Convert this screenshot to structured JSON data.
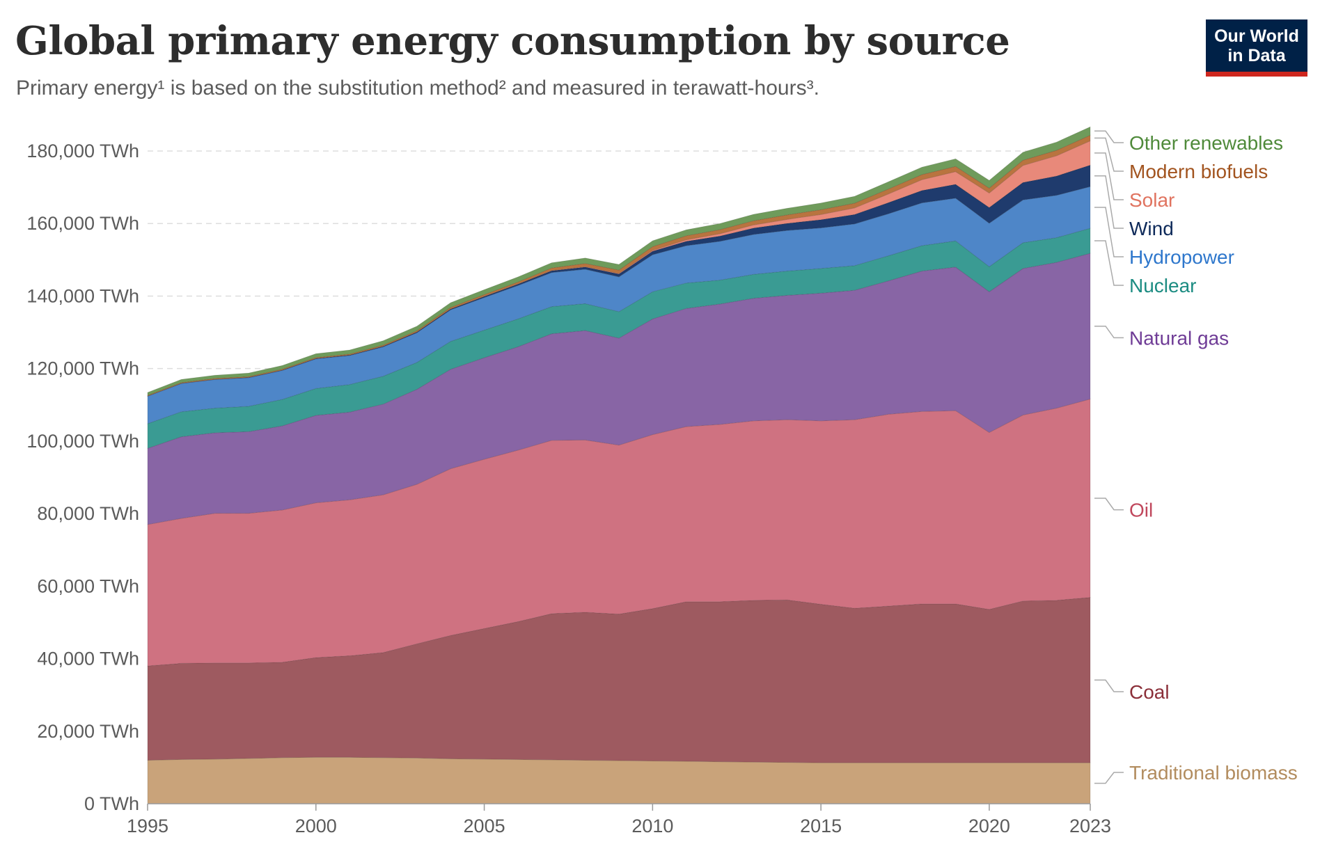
{
  "header": {
    "title": "Global primary energy consumption by source",
    "subtitle": "Primary energy¹ is based on the substitution method² and measured in terawatt-hours³."
  },
  "logo": {
    "line1": "Our World",
    "line2": "in Data"
  },
  "chart_data": {
    "type": "area",
    "stacked": true,
    "title": "Global primary energy consumption by source",
    "x": [
      1995,
      1996,
      1997,
      1998,
      1999,
      2000,
      2001,
      2002,
      2003,
      2004,
      2005,
      2006,
      2007,
      2008,
      2009,
      2010,
      2011,
      2012,
      2013,
      2014,
      2015,
      2016,
      2017,
      2018,
      2019,
      2020,
      2021,
      2022,
      2023
    ],
    "x_ticks": [
      1995,
      2000,
      2005,
      2010,
      2015,
      2020,
      2023
    ],
    "y_ticks": [
      {
        "value": 0,
        "label": "0 TWh"
      },
      {
        "value": 20000,
        "label": "20,000 TWh"
      },
      {
        "value": 40000,
        "label": "40,000 TWh"
      },
      {
        "value": 60000,
        "label": "60,000 TWh"
      },
      {
        "value": 80000,
        "label": "80,000 TWh"
      },
      {
        "value": 100000,
        "label": "100,000 TWh"
      },
      {
        "value": 120000,
        "label": "120,000 TWh"
      },
      {
        "value": 140000,
        "label": "140,000 TWh"
      },
      {
        "value": 160000,
        "label": "160,000 TWh"
      },
      {
        "value": 180000,
        "label": "180,000 TWh"
      }
    ],
    "ylim": [
      0,
      180000
    ],
    "grid": "horizontal dashed",
    "legend_position": "right (labels at series ends)",
    "series": [
      {
        "name": "Traditional biomass",
        "color": "#c9a37a",
        "label_color": "#b28c5e",
        "values": [
          12000,
          12200,
          12300,
          12500,
          12700,
          12800,
          12800,
          12700,
          12600,
          12400,
          12300,
          12200,
          12100,
          12000,
          11900,
          11800,
          11700,
          11600,
          11500,
          11400,
          11300,
          11300,
          11300,
          11300,
          11300,
          11300,
          11300,
          11300,
          11300
        ]
      },
      {
        "name": "Coal",
        "color": "#9e5a60",
        "label_color": "#8b2f39",
        "values": [
          26000,
          26500,
          26500,
          26300,
          26300,
          27500,
          28000,
          29000,
          31500,
          34000,
          36000,
          38000,
          40300,
          40800,
          40400,
          42000,
          44000,
          44100,
          44600,
          44800,
          43700,
          42600,
          43200,
          43800,
          43800,
          42300,
          44600,
          44800,
          45600
        ]
      },
      {
        "name": "Oil",
        "color": "#cf7281",
        "label_color": "#c0475c",
        "values": [
          39000,
          40000,
          41300,
          41300,
          42000,
          42700,
          43000,
          43500,
          44000,
          46000,
          46700,
          47300,
          47800,
          47500,
          46600,
          48000,
          48300,
          48900,
          49500,
          49700,
          50600,
          52000,
          52900,
          53100,
          53300,
          48800,
          51300,
          53000,
          54700
        ]
      },
      {
        "name": "Natural gas",
        "color": "#8865a5",
        "label_color": "#6f3c96",
        "values": [
          21000,
          22500,
          22200,
          22500,
          23200,
          24100,
          24200,
          25000,
          26200,
          27400,
          28000,
          28500,
          29400,
          30200,
          29500,
          31900,
          32600,
          33200,
          33800,
          34300,
          35200,
          35700,
          36800,
          38700,
          39600,
          38800,
          40400,
          40200,
          40200
        ]
      },
      {
        "name": "Nuclear",
        "color": "#3a9b93",
        "label_color": "#1c8c82",
        "values": [
          6800,
          6900,
          6800,
          7000,
          7300,
          7400,
          7600,
          7700,
          7400,
          7700,
          7600,
          7700,
          7500,
          7400,
          7300,
          7500,
          7000,
          6600,
          6600,
          6700,
          6800,
          6800,
          6900,
          7000,
          7200,
          6900,
          7100,
          6800,
          6900
        ]
      },
      {
        "name": "Hydropower",
        "color": "#4e86c8",
        "label_color": "#2e77cc",
        "values": [
          7600,
          7800,
          7900,
          7900,
          8000,
          8200,
          8000,
          8100,
          8200,
          8700,
          9000,
          9200,
          9400,
          9500,
          9600,
          10200,
          10300,
          10700,
          11000,
          11200,
          11200,
          11500,
          11600,
          11800,
          11800,
          12000,
          11800,
          11700,
          11500
        ]
      },
      {
        "name": "Wind",
        "color": "#1f3b6d",
        "label_color": "#0e2a5a",
        "values": [
          20,
          30,
          40,
          60,
          80,
          100,
          120,
          150,
          180,
          220,
          300,
          380,
          480,
          620,
          780,
          960,
          1200,
          1450,
          1750,
          1950,
          2250,
          2600,
          3050,
          3400,
          3800,
          4300,
          4800,
          5300,
          5900
        ]
      },
      {
        "name": "Solar",
        "color": "#e8897a",
        "label_color": "#e0735f",
        "values": [
          0,
          0,
          0,
          0,
          0,
          0,
          0,
          10,
          10,
          20,
          30,
          40,
          60,
          90,
          140,
          230,
          420,
          640,
          880,
          1110,
          1450,
          1800,
          2400,
          3000,
          3500,
          4000,
          4700,
          5600,
          6700
        ]
      },
      {
        "name": "Modern biofuels",
        "color": "#b9743f",
        "label_color": "#a2541f",
        "values": [
          200,
          220,
          240,
          250,
          260,
          270,
          290,
          320,
          360,
          420,
          480,
          540,
          700,
          880,
          950,
          1050,
          1100,
          1120,
          1150,
          1250,
          1300,
          1300,
          1350,
          1400,
          1450,
          1350,
          1450,
          1500,
          1550
        ]
      },
      {
        "name": "Other renewables",
        "color": "#6f9b5b",
        "label_color": "#4f8a3a",
        "values": [
          800,
          850,
          900,
          950,
          1000,
          1050,
          1100,
          1200,
          1250,
          1300,
          1350,
          1400,
          1450,
          1500,
          1550,
          1600,
          1650,
          1700,
          1750,
          1800,
          1850,
          1900,
          2000,
          2050,
          2100,
          2150,
          2200,
          2250,
          2300
        ]
      }
    ]
  }
}
